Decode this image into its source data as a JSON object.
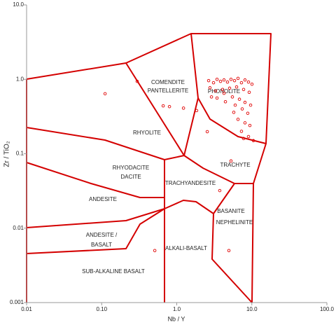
{
  "chart_data": {
    "type": "scatter",
    "xlabel": "Nb / Y",
    "ylabel": "Zr / TiO₂",
    "xlim": [
      0.01,
      100
    ],
    "ylim": [
      0.001,
      10
    ],
    "xlog": true,
    "ylog": true,
    "xticks": [
      0.01,
      {
        "value": 0.1,
        "label": "0.10"
      },
      {
        "value": 1,
        "label": "1.0"
      },
      {
        "value": 10,
        "label": "10.0"
      },
      {
        "value": 100,
        "label": "100.0"
      }
    ],
    "yticks": [
      0.001,
      0.01,
      0.1,
      {
        "value": 1,
        "label": "1.0"
      },
      {
        "value": 10,
        "label": "10.0"
      }
    ],
    "fields": [
      "COMENDITE",
      "PANTELLERITE",
      "PHONOLITE",
      "RHYOLITE",
      "TRACHYTE",
      "RHYODACITE",
      "DACITE",
      "TRACHYANDESITE",
      "ANDESITE",
      "BASANITE",
      "NEPHELINITE",
      "ANDESITE /",
      "BASALT",
      "ALKALI-BASALT",
      "SUB-ALKALINE BASALT"
    ],
    "series": [
      {
        "color": "#e00000",
        "x": [
          2.66,
          3.09,
          3.44,
          3.83,
          4.26,
          4.74,
          5.28,
          5.88,
          6.55,
          7.28,
          8.11,
          9.03,
          10.05,
          2.77,
          3.29,
          4.08,
          5.06,
          6.27,
          7.77,
          9.23,
          3.44,
          4.45,
          5.51,
          6.84,
          8.11,
          9.64,
          6.01,
          7.45,
          8.83,
          6.55,
          8.11,
          9.42,
          7.28,
          9.03,
          10.5,
          5.75,
          7.77,
          2.9,
          4.26,
          0.111,
          0.297,
          0.66,
          0.8,
          1.23,
          1.84,
          2.55,
          0.51,
          4.95,
          5.28,
          3.74
        ],
        "values": [
          0.96,
          0.9,
          1.0,
          0.94,
          0.98,
          0.92,
          1.0,
          0.96,
          1.03,
          0.9,
          0.98,
          0.92,
          0.86,
          0.77,
          0.7,
          0.73,
          0.76,
          0.79,
          0.73,
          0.67,
          0.56,
          0.5,
          0.58,
          0.54,
          0.49,
          0.45,
          0.45,
          0.4,
          0.35,
          0.29,
          0.26,
          0.24,
          0.2,
          0.17,
          0.15,
          0.36,
          0.16,
          0.58,
          0.65,
          0.64,
          0.94,
          0.44,
          0.43,
          0.41,
          0.38,
          0.198,
          0.005,
          0.005,
          0.08,
          0.032
        ]
      }
    ]
  }
}
